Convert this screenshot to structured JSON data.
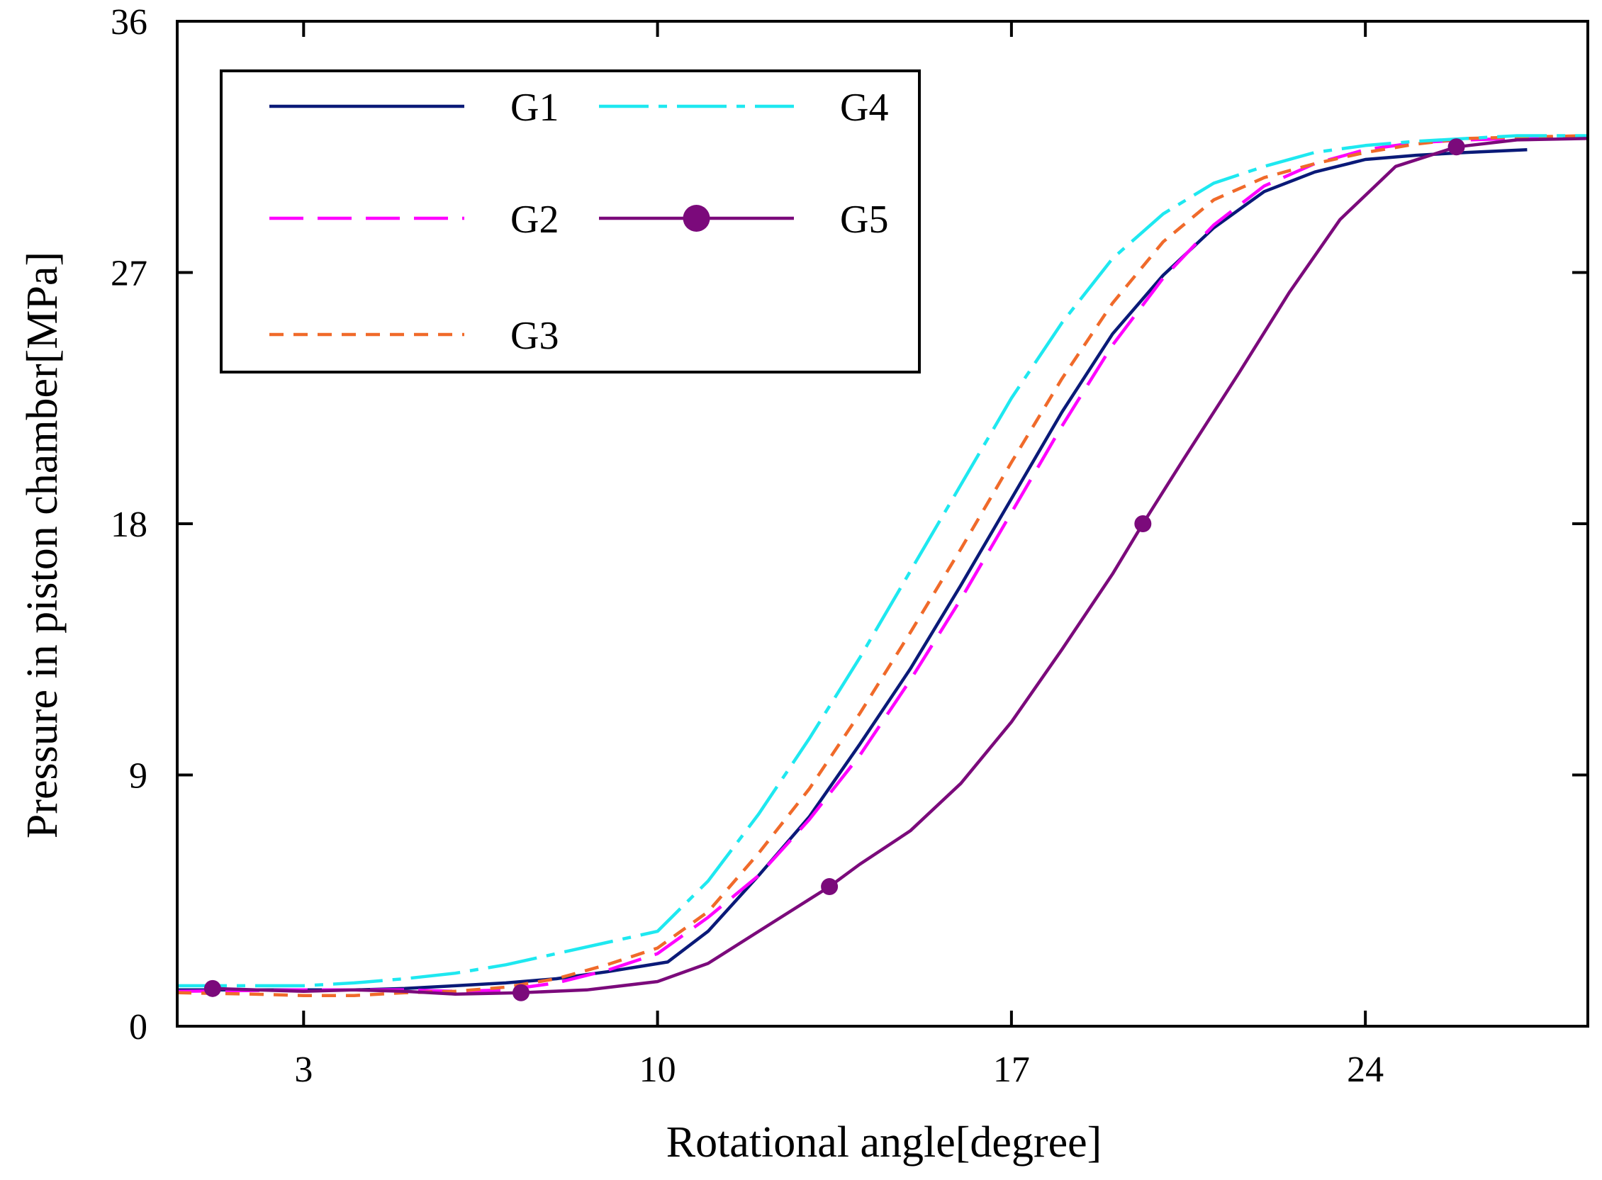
{
  "chart_data": {
    "type": "line",
    "title": "",
    "xlabel": "Rotational angle[degree]",
    "ylabel": "Pressure in piston chamber[MPa]",
    "xlim": [
      0.5,
      28.4
    ],
    "ylim": [
      0,
      36
    ],
    "xticks": [
      3,
      10,
      17,
      24
    ],
    "yticks": [
      0,
      9,
      18,
      27,
      36
    ],
    "grid": false,
    "legend_position": "top-left",
    "series": [
      {
        "name": "G1",
        "color": "#0a1a78",
        "dash": "solid",
        "marker": "none",
        "points": [
          [
            0.5,
            1.3
          ],
          [
            3,
            1.3
          ],
          [
            4,
            1.3
          ],
          [
            5,
            1.35
          ],
          [
            6,
            1.45
          ],
          [
            7,
            1.55
          ],
          [
            8,
            1.7
          ],
          [
            9,
            1.95
          ],
          [
            10.2,
            2.3
          ],
          [
            11,
            3.4
          ],
          [
            12,
            5.4
          ],
          [
            13,
            7.5
          ],
          [
            14,
            10.1
          ],
          [
            15,
            12.8
          ],
          [
            16,
            15.8
          ],
          [
            17,
            18.9
          ],
          [
            18,
            22
          ],
          [
            19,
            24.8
          ],
          [
            20,
            26.9
          ],
          [
            21,
            28.6
          ],
          [
            22,
            29.9
          ],
          [
            23,
            30.6
          ],
          [
            24,
            31.05
          ],
          [
            25,
            31.2
          ],
          [
            26,
            31.3
          ],
          [
            27.2,
            31.4
          ]
        ]
      },
      {
        "name": "G2",
        "color": "#ff00ff",
        "dash": "long-dash",
        "marker": "none",
        "points": [
          [
            0.5,
            1.25
          ],
          [
            3,
            1.3
          ],
          [
            4,
            1.3
          ],
          [
            5,
            1.3
          ],
          [
            6,
            1.25
          ],
          [
            7,
            1.3
          ],
          [
            8,
            1.55
          ],
          [
            9,
            2.0
          ],
          [
            10,
            2.6
          ],
          [
            11,
            3.9
          ],
          [
            12,
            5.4
          ],
          [
            13,
            7.4
          ],
          [
            14,
            9.7
          ],
          [
            15,
            12.4
          ],
          [
            16,
            15.3
          ],
          [
            17,
            18.4
          ],
          [
            18,
            21.5
          ],
          [
            19,
            24.4
          ],
          [
            20,
            26.8
          ],
          [
            21,
            28.7
          ],
          [
            22,
            30.1
          ],
          [
            23,
            30.9
          ],
          [
            24,
            31.4
          ],
          [
            25,
            31.65
          ],
          [
            26,
            31.75
          ],
          [
            27,
            31.8
          ],
          [
            28.4,
            31.85
          ]
        ]
      },
      {
        "name": "G3",
        "color": "#f06a2a",
        "dash": "short-dash",
        "marker": "none",
        "points": [
          [
            0.5,
            1.2
          ],
          [
            2,
            1.15
          ],
          [
            3,
            1.1
          ],
          [
            4,
            1.1
          ],
          [
            5,
            1.2
          ],
          [
            6,
            1.25
          ],
          [
            7,
            1.4
          ],
          [
            8,
            1.7
          ],
          [
            9,
            2.2
          ],
          [
            10,
            2.8
          ],
          [
            11,
            4.1
          ],
          [
            12,
            6.2
          ],
          [
            13,
            8.5
          ],
          [
            14,
            11.2
          ],
          [
            15,
            14.1
          ],
          [
            16,
            17.1
          ],
          [
            17,
            20.2
          ],
          [
            18,
            23.2
          ],
          [
            19,
            25.9
          ],
          [
            20,
            28.1
          ],
          [
            21,
            29.6
          ],
          [
            22,
            30.4
          ],
          [
            23,
            30.9
          ],
          [
            24,
            31.3
          ],
          [
            25,
            31.6
          ],
          [
            26,
            31.8
          ],
          [
            27,
            31.85
          ],
          [
            28.4,
            31.9
          ]
        ]
      },
      {
        "name": "G4",
        "color": "#1ee8f0",
        "dash": "dash-dot",
        "marker": "none",
        "points": [
          [
            0.5,
            1.45
          ],
          [
            2,
            1.45
          ],
          [
            3,
            1.45
          ],
          [
            4,
            1.55
          ],
          [
            5,
            1.7
          ],
          [
            6,
            1.9
          ],
          [
            7,
            2.2
          ],
          [
            8,
            2.6
          ],
          [
            10,
            3.4
          ],
          [
            11,
            5.2
          ],
          [
            12,
            7.6
          ],
          [
            13,
            10.3
          ],
          [
            14,
            13.2
          ],
          [
            15,
            16.3
          ],
          [
            16,
            19.4
          ],
          [
            17,
            22.5
          ],
          [
            18,
            25.2
          ],
          [
            19,
            27.5
          ],
          [
            20,
            29.1
          ],
          [
            21,
            30.2
          ],
          [
            22,
            30.8
          ],
          [
            23,
            31.3
          ],
          [
            24,
            31.55
          ],
          [
            25,
            31.7
          ],
          [
            26,
            31.8
          ],
          [
            27,
            31.9
          ],
          [
            28.4,
            31.9
          ]
        ]
      },
      {
        "name": "G5",
        "color": "#7b0a7b",
        "dash": "solid",
        "marker": "circle",
        "points": [
          [
            1.2,
            1.35
          ],
          [
            3,
            1.25
          ],
          [
            4,
            1.3
          ],
          [
            5,
            1.25
          ],
          [
            6,
            1.15
          ],
          [
            7.3,
            1.2
          ],
          [
            8.6,
            1.3
          ],
          [
            10,
            1.6
          ],
          [
            11,
            2.25
          ],
          [
            12,
            3.4
          ],
          [
            13.4,
            5.0
          ],
          [
            14,
            5.8
          ],
          [
            15,
            7.0
          ],
          [
            16,
            8.7
          ],
          [
            17,
            10.9
          ],
          [
            18,
            13.5
          ],
          [
            19,
            16.2
          ],
          [
            19.6,
            18.0
          ],
          [
            20.4,
            20.3
          ],
          [
            21.5,
            23.4
          ],
          [
            22.5,
            26.3
          ],
          [
            23.5,
            28.9
          ],
          [
            24.6,
            30.8
          ],
          [
            25.8,
            31.5
          ],
          [
            27,
            31.75
          ],
          [
            28.4,
            31.8
          ]
        ],
        "marker_points": [
          [
            1.2,
            1.35
          ],
          [
            7.3,
            1.2
          ],
          [
            13.4,
            5.0
          ],
          [
            19.6,
            18.0
          ],
          [
            25.8,
            31.5
          ]
        ]
      }
    ]
  }
}
